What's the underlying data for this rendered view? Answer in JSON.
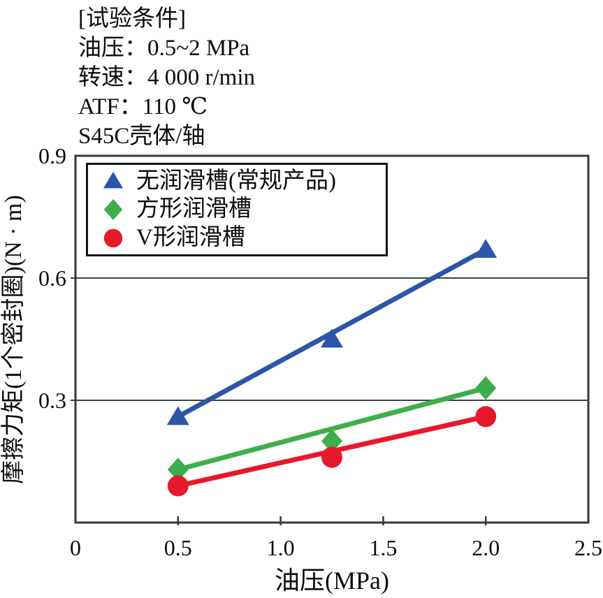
{
  "conditions": {
    "title": "[试验条件]",
    "lines": [
      "油压：0.5~2 MPa",
      "转速：4 000 r/min",
      "ATF：110 ℃",
      "S45C壳体/轴"
    ]
  },
  "chart_data": {
    "type": "scatter",
    "x": [
      0.5,
      1.25,
      2.0
    ],
    "series": [
      {
        "name": "无润滑槽(常规产品)",
        "marker": "triangle",
        "color": "#2d55a7",
        "values": [
          0.26,
          0.45,
          0.67
        ]
      },
      {
        "name": "方形润滑槽",
        "marker": "diamond",
        "color": "#3dae49",
        "values": [
          0.13,
          0.2,
          0.33
        ]
      },
      {
        "name": "V形润滑槽",
        "marker": "circle",
        "color": "#e8182c",
        "values": [
          0.09,
          0.16,
          0.26
        ]
      }
    ],
    "title": "",
    "xlabel": "油压(MPa)",
    "ylabel": "摩擦力矩(1个密封圈)(N · m)",
    "xlim": [
      0,
      2.5
    ],
    "ylim": [
      0,
      0.9
    ],
    "x_ticks": [
      0,
      0.5,
      1.0,
      1.5,
      2.0,
      2.5
    ],
    "x_tick_labels": [
      "0",
      "0.5",
      "1.0",
      "1.5",
      "2.0",
      "2.5"
    ],
    "y_ticks": [
      0.3,
      0.6,
      0.9
    ],
    "y_tick_labels": [
      "0.3",
      "0.6",
      "0.9"
    ],
    "grid": "horizontal gridlines at 0.3 and 0.6",
    "line_style": "straight trendline from first to last point",
    "legend_position": "top-left inside plot, boxed"
  },
  "colors": {
    "background": "#ffffff",
    "text": "#0c0c0c",
    "axis_border": "#30393c",
    "gridline": "#3b4347",
    "legend_border": "#101314",
    "series_blue": "#2d55a7",
    "series_green": "#3dae49",
    "series_red": "#e8182c"
  }
}
